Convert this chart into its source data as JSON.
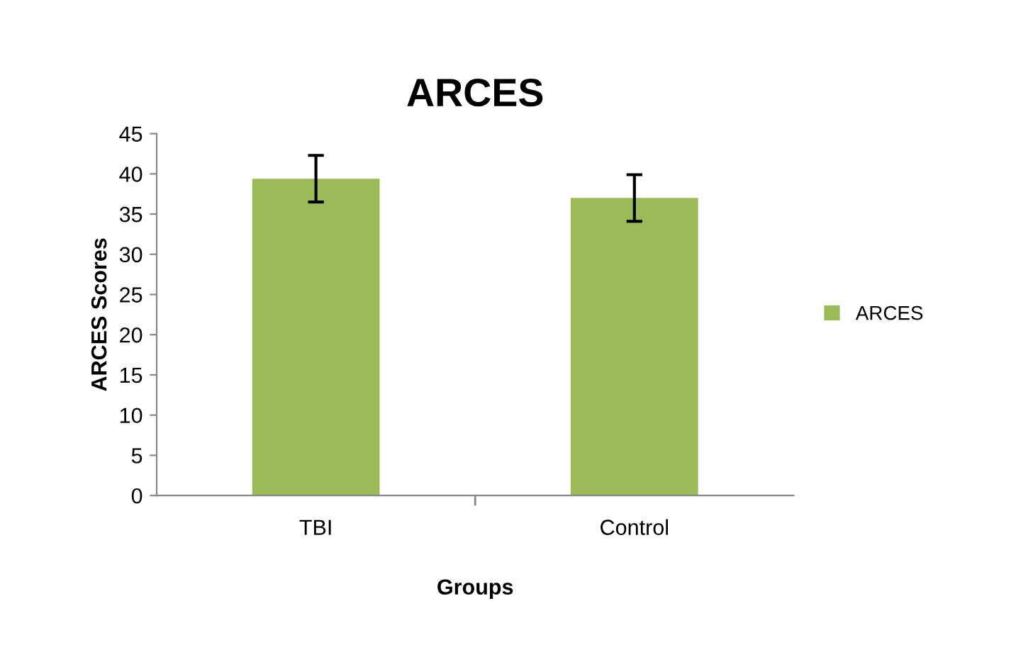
{
  "chart_data": {
    "type": "bar",
    "title": "ARCES",
    "xlabel": "Groups",
    "ylabel": "ARCES Scores",
    "categories": [
      "TBI",
      "Control"
    ],
    "series": [
      {
        "name": "ARCES",
        "color": "#9bbb59",
        "values": [
          39.4,
          37.0
        ],
        "errors": [
          2.9,
          2.9
        ]
      }
    ],
    "ylim": [
      0,
      45
    ],
    "yticks": [
      0,
      5,
      10,
      15,
      20,
      25,
      30,
      35,
      40,
      45
    ],
    "grid": false,
    "legend": "right"
  }
}
